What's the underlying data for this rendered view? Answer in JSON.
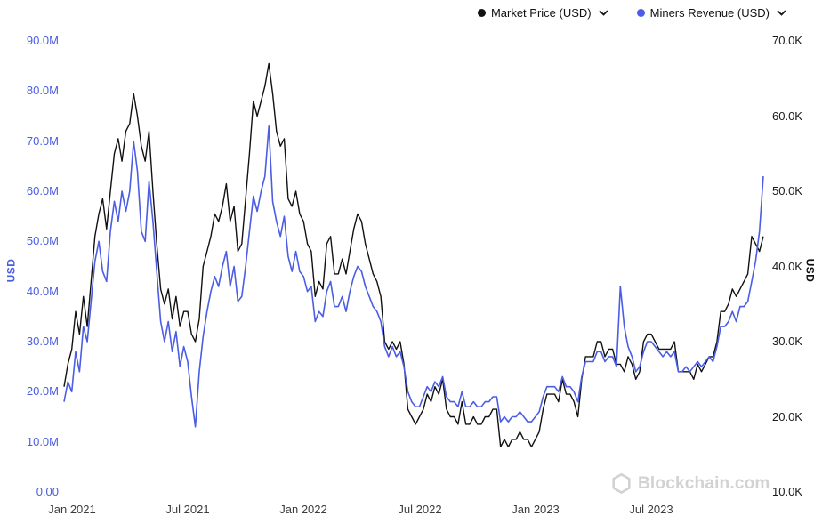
{
  "watermark": {
    "text": "Blockchain.com"
  },
  "chart_data": {
    "type": "line",
    "title": "",
    "grid": false,
    "legend_position": "top-right",
    "x_tick_labels": [
      "Jan 2021",
      "Jul 2021",
      "Jan 2022",
      "Jul 2022",
      "Jan 2023",
      "Jul 2023"
    ],
    "x_tick_indices": [
      2,
      32,
      62,
      92,
      122,
      152
    ],
    "y_left": {
      "label": "USD",
      "unit": "M (millions USD)",
      "min": 0,
      "max": 90,
      "ticks": [
        "90.0M",
        "80.0M",
        "70.0M",
        "60.0M",
        "50.0M",
        "40.0M",
        "30.0M",
        "20.0M",
        "10.0M",
        "0.00"
      ]
    },
    "y_right": {
      "label": "USD",
      "unit": "K (thousands USD)",
      "min": 10,
      "max": 70,
      "ticks": [
        "70.0K",
        "60.0K",
        "50.0K",
        "40.0K",
        "30.0K",
        "20.0K",
        "10.0K"
      ]
    },
    "series": [
      {
        "name": "Market Price (USD)",
        "axis": "right",
        "unit": "USD thousands",
        "color": "#111111",
        "values": [
          24,
          27,
          29,
          34,
          31,
          36,
          32,
          38,
          44,
          47,
          49,
          45,
          50,
          55,
          57,
          54,
          58,
          59,
          63,
          60,
          56,
          54,
          58,
          50,
          43,
          37,
          35,
          37,
          33,
          36,
          32,
          34,
          34,
          31,
          30,
          33,
          40,
          42,
          44,
          47,
          46,
          48,
          51,
          46,
          48,
          42,
          43,
          49,
          55,
          62,
          60,
          62,
          64,
          67,
          63,
          58,
          56,
          57,
          49,
          48,
          50,
          47,
          46,
          43,
          42,
          36,
          38,
          37,
          43,
          44,
          39,
          39,
          41,
          39,
          42,
          45,
          47,
          46,
          43,
          41,
          39,
          38,
          36,
          30,
          29,
          30,
          29,
          30,
          27,
          21,
          20,
          19,
          20,
          21,
          23,
          22,
          24,
          23,
          25,
          21,
          20,
          20,
          19,
          22,
          19,
          19,
          20,
          19,
          19,
          20,
          20,
          21,
          21,
          16,
          17,
          16,
          17,
          17,
          18,
          17,
          17,
          16,
          17,
          18,
          21,
          23,
          23,
          23,
          22,
          25,
          23,
          23,
          22,
          20,
          25,
          28,
          28,
          28,
          30,
          30,
          28,
          29,
          29,
          27,
          27,
          26,
          28,
          27,
          25,
          26,
          30,
          31,
          31,
          30,
          29,
          29,
          29,
          29,
          30,
          26,
          26,
          26,
          26,
          25,
          27,
          26,
          27,
          28,
          28,
          30,
          34,
          34,
          35,
          37,
          36,
          37,
          38,
          39,
          44,
          43,
          42,
          44
        ]
      },
      {
        "name": "Miners Revenue (USD)",
        "axis": "left",
        "unit": "USD millions",
        "color": "#4a5de4",
        "values": [
          18,
          22,
          20,
          28,
          24,
          33,
          30,
          38,
          46,
          50,
          44,
          42,
          52,
          58,
          54,
          60,
          56,
          60,
          70,
          64,
          52,
          50,
          62,
          54,
          44,
          34,
          30,
          34,
          28,
          32,
          25,
          29,
          26,
          19,
          13,
          24,
          31,
          36,
          40,
          43,
          41,
          45,
          48,
          41,
          45,
          38,
          39,
          45,
          52,
          59,
          56,
          60,
          63,
          73,
          58,
          54,
          51,
          55,
          47,
          44,
          48,
          44,
          43,
          40,
          41,
          34,
          36,
          35,
          40,
          42,
          37,
          37,
          39,
          36,
          40,
          43,
          45,
          44,
          41,
          39,
          37,
          36,
          34,
          29,
          27,
          29,
          27,
          28,
          25,
          20,
          18,
          17,
          17,
          19,
          21,
          20,
          22,
          21,
          23,
          19,
          18,
          18,
          17,
          20,
          17,
          17,
          18,
          17,
          17,
          18,
          18,
          19,
          19,
          14,
          15,
          14,
          15,
          15,
          16,
          15,
          14,
          14,
          15,
          16,
          19,
          21,
          21,
          21,
          20,
          23,
          21,
          21,
          20,
          18,
          23,
          26,
          26,
          26,
          28,
          28,
          26,
          27,
          27,
          25,
          41,
          33,
          29,
          27,
          24,
          25,
          28,
          30,
          30,
          29,
          28,
          27,
          28,
          27,
          28,
          24,
          24,
          25,
          24,
          25,
          26,
          25,
          26,
          27,
          26,
          29,
          33,
          33,
          34,
          36,
          34,
          37,
          37,
          38,
          42,
          46,
          52,
          63
        ]
      }
    ]
  }
}
